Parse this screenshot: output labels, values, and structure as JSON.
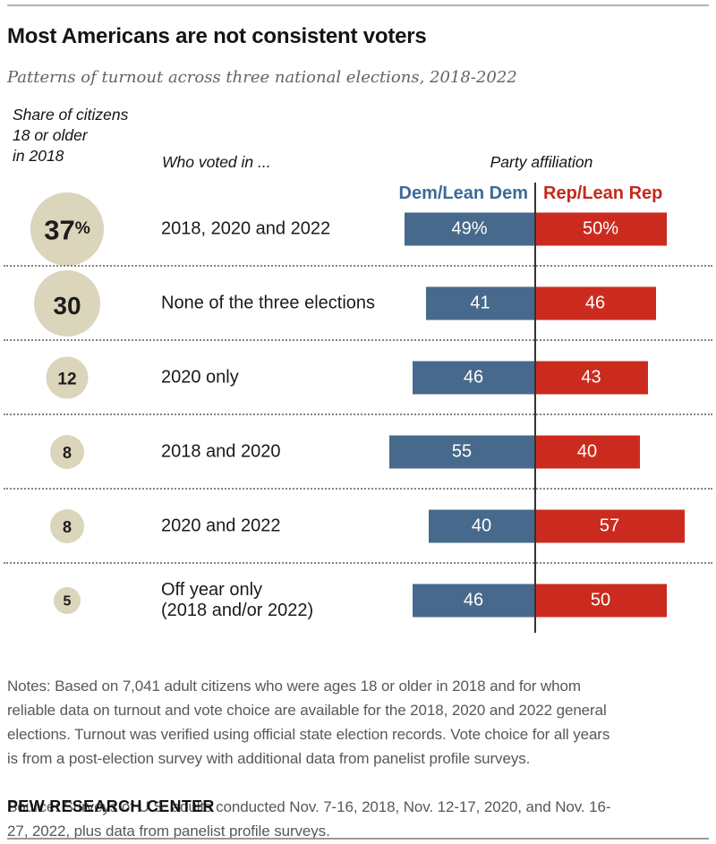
{
  "header": {
    "title": "Most Americans are not consistent voters",
    "subtitle": "Patterns of turnout across three national elections, 2018-2022"
  },
  "columns": {
    "share_label": "Share of citizens\n18 or older\nin 2018",
    "voted_label": "Who voted in ...",
    "party_label": "Party affiliation",
    "dem_label": "Dem/Lean Dem",
    "rep_label": "Rep/Lean Rep"
  },
  "colors": {
    "dem_bar": "#47698b",
    "rep_bar": "#cb2b1e",
    "dem_header_text": "#3e6b96",
    "rep_header_text": "#c42a1b",
    "circle_fill": "#dbd5bb",
    "notes_text": "#58585a"
  },
  "chart_data": {
    "type": "bar",
    "orientation": "horizontal-diverging",
    "title": "Most Americans are not consistent voters",
    "subtitle": "Patterns of turnout across three national elections, 2018-2022",
    "categories": [
      "2018, 2020 and 2022",
      "None of the three elections",
      "2020 only",
      "2018 and 2020",
      "2020 and 2022",
      "Off year only (2018 and/or 2022)"
    ],
    "share_of_citizens_pct": [
      37,
      30,
      12,
      8,
      8,
      5
    ],
    "series": [
      {
        "name": "Dem/Lean Dem",
        "values": [
          49,
          41,
          46,
          55,
          40,
          46
        ]
      },
      {
        "name": "Rep/Lean Rep",
        "values": [
          50,
          46,
          43,
          40,
          57,
          50
        ]
      }
    ],
    "rows": [
      {
        "label": "2018, 2020 and 2022",
        "share": 37,
        "circle_text": "37",
        "circle_suffix": "%",
        "dem": 49,
        "rep": 50,
        "dem_text": "49%",
        "rep_text": "50%"
      },
      {
        "label": "None of the three elections",
        "share": 30,
        "circle_text": "30",
        "circle_suffix": "",
        "dem": 41,
        "rep": 46,
        "dem_text": "41",
        "rep_text": "46"
      },
      {
        "label": "2020 only",
        "share": 12,
        "circle_text": "12",
        "circle_suffix": "",
        "dem": 46,
        "rep": 43,
        "dem_text": "46",
        "rep_text": "43"
      },
      {
        "label": "2018 and 2020",
        "share": 8,
        "circle_text": "8",
        "circle_suffix": "",
        "dem": 55,
        "rep": 40,
        "dem_text": "55",
        "rep_text": "40"
      },
      {
        "label": "2020 and 2022",
        "share": 8,
        "circle_text": "8",
        "circle_suffix": "",
        "dem": 40,
        "rep": 57,
        "dem_text": "40",
        "rep_text": "57"
      },
      {
        "label": "Off year only\n(2018 and/or 2022)",
        "share": 5,
        "circle_text": "5",
        "circle_suffix": "",
        "dem": 46,
        "rep": 50,
        "dem_text": "46",
        "rep_text": "50"
      }
    ]
  },
  "notes": {
    "notes_text": "Notes: Based on 7,041 adult citizens who were ages 18 or older in 2018 and for whom\nreliable data on turnout and vote choice are available for the 2018, 2020 and 2022 general\nelections. Turnout was verified using official state election records. Vote choice for all years\nis from a post-election survey with additional data from panelist profile surveys.",
    "source_text": "Source: Surveys of U.S. adults conducted Nov. 7-16, 2018, Nov. 12-17, 2020, and Nov. 16-\n27, 2022, plus data from panelist profile surveys."
  },
  "footer": {
    "brand": "PEW RESEARCH CENTER"
  }
}
